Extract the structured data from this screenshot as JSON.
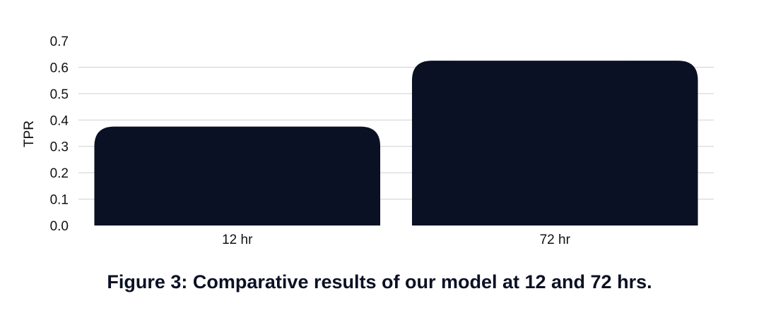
{
  "chart_data": {
    "type": "bar",
    "categories": [
      "12 hr",
      "72 hr"
    ],
    "values": [
      0.375,
      0.625
    ],
    "xlabel": "",
    "ylabel": "TPR",
    "ylim": [
      0,
      0.7
    ],
    "yticks": [
      "0.0",
      "0.1",
      "0.2",
      "0.3",
      "0.4",
      "0.5",
      "0.6",
      "0.7"
    ],
    "grid": true,
    "bar_color": "#0b1124",
    "grid_color": "#cfcfcf"
  },
  "caption": "Figure 3: Comparative results of our model at 12 and 72 hrs."
}
